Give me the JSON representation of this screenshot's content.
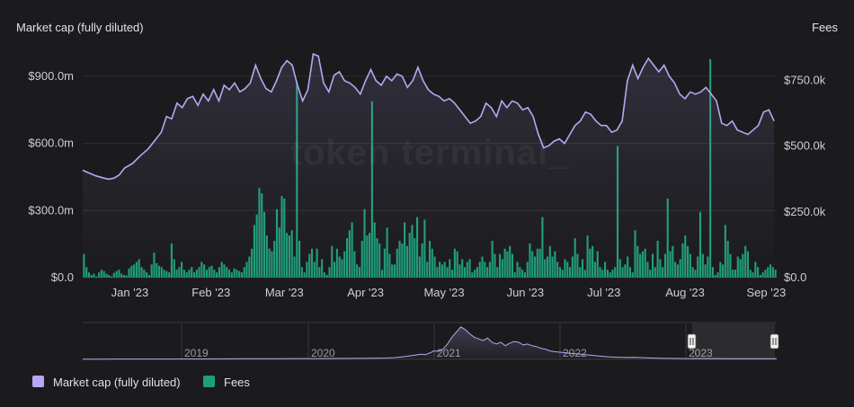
{
  "chart_data": {
    "type": "bar+line",
    "left_axis_title": "Market cap (fully diluted)",
    "right_axis_title": "Fees",
    "watermark": "token terminal_",
    "left_ticks": [
      "$0.0",
      "$300.0m",
      "$600.0m",
      "$900.0m"
    ],
    "left_tick_values": [
      0,
      300,
      600,
      900
    ],
    "right_ticks": [
      "$0.0",
      "$250.0k",
      "$500.0k",
      "$750.0k"
    ],
    "right_tick_values": [
      0,
      250,
      500,
      750
    ],
    "x_ticks": [
      "Jan '23",
      "Feb '23",
      "Mar '23",
      "Apr '23",
      "May '23",
      "Jun '23",
      "Jul '23",
      "Aug '23",
      "Sep '23"
    ],
    "x_range_days": [
      -10,
      255
    ],
    "x_tick_days": [
      8,
      39,
      67,
      98,
      128,
      159,
      189,
      220,
      251
    ],
    "left_range": [
      0,
      1000
    ],
    "right_range": [
      0,
      850
    ],
    "series": [
      {
        "name": "Market cap (fully diluted)",
        "axis": "left",
        "color": "#b8a6f2",
        "unit": "$m",
        "points": [
          [
            -10,
            480
          ],
          [
            -8,
            470
          ],
          [
            -5,
            455
          ],
          [
            -2,
            445
          ],
          [
            0,
            440
          ],
          [
            2,
            445
          ],
          [
            4,
            460
          ],
          [
            6,
            490
          ],
          [
            9,
            510
          ],
          [
            12,
            545
          ],
          [
            15,
            575
          ],
          [
            18,
            620
          ],
          [
            20,
            650
          ],
          [
            22,
            720
          ],
          [
            24,
            710
          ],
          [
            26,
            780
          ],
          [
            28,
            760
          ],
          [
            30,
            800
          ],
          [
            32,
            810
          ],
          [
            34,
            770
          ],
          [
            36,
            820
          ],
          [
            38,
            790
          ],
          [
            40,
            840
          ],
          [
            42,
            790
          ],
          [
            44,
            860
          ],
          [
            46,
            840
          ],
          [
            48,
            870
          ],
          [
            50,
            830
          ],
          [
            52,
            845
          ],
          [
            54,
            870
          ],
          [
            56,
            950
          ],
          [
            58,
            890
          ],
          [
            60,
            845
          ],
          [
            62,
            830
          ],
          [
            64,
            880
          ],
          [
            66,
            940
          ],
          [
            68,
            970
          ],
          [
            70,
            950
          ],
          [
            72,
            860
          ],
          [
            74,
            790
          ],
          [
            76,
            840
          ],
          [
            78,
            1000
          ],
          [
            80,
            990
          ],
          [
            82,
            870
          ],
          [
            84,
            830
          ],
          [
            86,
            905
          ],
          [
            88,
            920
          ],
          [
            90,
            880
          ],
          [
            92,
            870
          ],
          [
            94,
            850
          ],
          [
            96,
            820
          ],
          [
            98,
            880
          ],
          [
            100,
            930
          ],
          [
            102,
            880
          ],
          [
            104,
            860
          ],
          [
            106,
            900
          ],
          [
            108,
            880
          ],
          [
            110,
            910
          ],
          [
            112,
            900
          ],
          [
            114,
            850
          ],
          [
            116,
            880
          ],
          [
            118,
            940
          ],
          [
            120,
            880
          ],
          [
            122,
            840
          ],
          [
            124,
            820
          ],
          [
            126,
            810
          ],
          [
            128,
            790
          ],
          [
            130,
            800
          ],
          [
            132,
            780
          ],
          [
            134,
            750
          ],
          [
            136,
            720
          ],
          [
            138,
            690
          ],
          [
            140,
            700
          ],
          [
            142,
            720
          ],
          [
            144,
            780
          ],
          [
            146,
            760
          ],
          [
            148,
            720
          ],
          [
            150,
            790
          ],
          [
            152,
            760
          ],
          [
            154,
            790
          ],
          [
            156,
            780
          ],
          [
            158,
            750
          ],
          [
            160,
            760
          ],
          [
            162,
            720
          ],
          [
            164,
            640
          ],
          [
            166,
            580
          ],
          [
            168,
            590
          ],
          [
            170,
            610
          ],
          [
            172,
            620
          ],
          [
            174,
            600
          ],
          [
            176,
            640
          ],
          [
            178,
            680
          ],
          [
            180,
            700
          ],
          [
            182,
            740
          ],
          [
            184,
            730
          ],
          [
            186,
            700
          ],
          [
            188,
            680
          ],
          [
            190,
            680
          ],
          [
            192,
            650
          ],
          [
            194,
            660
          ],
          [
            196,
            700
          ],
          [
            198,
            880
          ],
          [
            200,
            950
          ],
          [
            202,
            890
          ],
          [
            204,
            940
          ],
          [
            206,
            980
          ],
          [
            208,
            950
          ],
          [
            210,
            920
          ],
          [
            212,
            950
          ],
          [
            214,
            900
          ],
          [
            216,
            870
          ],
          [
            218,
            820
          ],
          [
            220,
            800
          ],
          [
            222,
            830
          ],
          [
            224,
            820
          ],
          [
            226,
            830
          ],
          [
            228,
            850
          ],
          [
            230,
            820
          ],
          [
            232,
            790
          ],
          [
            234,
            690
          ],
          [
            236,
            680
          ],
          [
            238,
            700
          ],
          [
            240,
            660
          ],
          [
            242,
            650
          ],
          [
            244,
            640
          ],
          [
            246,
            660
          ],
          [
            248,
            680
          ],
          [
            250,
            740
          ],
          [
            252,
            750
          ],
          [
            254,
            700
          ]
        ]
      },
      {
        "name": "Fees",
        "axis": "right",
        "color": "#1f9e7a",
        "unit": "$k",
        "values": [
          90,
          40,
          20,
          10,
          15,
          5,
          20,
          30,
          25,
          15,
          10,
          5,
          18,
          25,
          30,
          15,
          10,
          8,
          35,
          45,
          50,
          60,
          70,
          40,
          30,
          20,
          10,
          50,
          95,
          55,
          45,
          40,
          30,
          25,
          20,
          130,
          70,
          30,
          40,
          60,
          30,
          20,
          30,
          40,
          20,
          30,
          40,
          60,
          50,
          30,
          40,
          45,
          30,
          20,
          40,
          60,
          50,
          40,
          30,
          20,
          35,
          30,
          25,
          20,
          40,
          60,
          80,
          110,
          200,
          240,
          340,
          320,
          250,
          160,
          110,
          100,
          140,
          260,
          190,
          310,
          300,
          170,
          160,
          180,
          80,
          740,
          140,
          40,
          20,
          60,
          90,
          110,
          60,
          110,
          40,
          70,
          20,
          10,
          40,
          120,
          60,
          110,
          80,
          70,
          100,
          150,
          180,
          210,
          100,
          50,
          40,
          140,
          260,
          160,
          170,
          670,
          210,
          150,
          130,
          30,
          110,
          190,
          90,
          50,
          50,
          110,
          140,
          130,
          210,
          120,
          170,
          200,
          150,
          230,
          80,
          130,
          220,
          60,
          140,
          110,
          80,
          40,
          60,
          50,
          60,
          40,
          70,
          30,
          110,
          100,
          50,
          70,
          40,
          60,
          70,
          20,
          30,
          40,
          60,
          80,
          60,
          40,
          60,
          140,
          90,
          40,
          90,
          70,
          110,
          100,
          120,
          90,
          20,
          60,
          40,
          30,
          20,
          60,
          130,
          100,
          80,
          110,
          110,
          230,
          70,
          80,
          120,
          80,
          100,
          60,
          40,
          30,
          70,
          60,
          40,
          80,
          150,
          90,
          40,
          70,
          30,
          160,
          110,
          120,
          60,
          100,
          40,
          30,
          60,
          30,
          20,
          30,
          40,
          500,
          70,
          40,
          50,
          80,
          40,
          20,
          180,
          120,
          90,
          100,
          110,
          60,
          30,
          90,
          40,
          140,
          70,
          40,
          90,
          300,
          100,
          120,
          60,
          50,
          70,
          130,
          160,
          120,
          90,
          40,
          30,
          80,
          250,
          90,
          50,
          80,
          830,
          40,
          10,
          20,
          60,
          50,
          200,
          140,
          90,
          30,
          30,
          80,
          70,
          90,
          120,
          100,
          30,
          20,
          60,
          40,
          10,
          20,
          30,
          40,
          50,
          40,
          30
        ]
      }
    ],
    "navigator": {
      "year_labels": [
        "2019",
        "2020",
        "2021",
        "2022",
        "2023"
      ],
      "points": [
        [
          0,
          3
        ],
        [
          20,
          3
        ],
        [
          40,
          4
        ],
        [
          60,
          4
        ],
        [
          80,
          4
        ],
        [
          100,
          4
        ],
        [
          120,
          5
        ],
        [
          140,
          5
        ],
        [
          160,
          6
        ],
        [
          180,
          7
        ],
        [
          200,
          8
        ],
        [
          220,
          8
        ],
        [
          240,
          9
        ],
        [
          260,
          10
        ],
        [
          280,
          11
        ],
        [
          300,
          12
        ],
        [
          320,
          13
        ],
        [
          340,
          16
        ],
        [
          350,
          20
        ],
        [
          360,
          30
        ],
        [
          370,
          45
        ],
        [
          380,
          60
        ],
        [
          385,
          55
        ],
        [
          390,
          75
        ],
        [
          395,
          100
        ],
        [
          400,
          95
        ],
        [
          405,
          120
        ],
        [
          410,
          180
        ],
        [
          415,
          260
        ],
        [
          420,
          320
        ],
        [
          425,
          380
        ],
        [
          430,
          350
        ],
        [
          435,
          300
        ],
        [
          440,
          260
        ],
        [
          445,
          240
        ],
        [
          450,
          220
        ],
        [
          455,
          250
        ],
        [
          460,
          200
        ],
        [
          465,
          180
        ],
        [
          470,
          200
        ],
        [
          475,
          160
        ],
        [
          480,
          190
        ],
        [
          485,
          210
        ],
        [
          490,
          200
        ],
        [
          495,
          170
        ],
        [
          500,
          180
        ],
        [
          505,
          160
        ],
        [
          510,
          150
        ],
        [
          515,
          130
        ],
        [
          520,
          120
        ],
        [
          525,
          100
        ],
        [
          530,
          90
        ],
        [
          540,
          80
        ],
        [
          550,
          70
        ],
        [
          560,
          60
        ],
        [
          570,
          50
        ],
        [
          580,
          40
        ],
        [
          590,
          30
        ],
        [
          600,
          25
        ],
        [
          610,
          22
        ],
        [
          620,
          24
        ],
        [
          630,
          20
        ],
        [
          640,
          16
        ],
        [
          650,
          14
        ],
        [
          660,
          12
        ],
        [
          670,
          11
        ],
        [
          680,
          10
        ],
        [
          690,
          10
        ],
        [
          700,
          9
        ],
        [
          710,
          9
        ],
        [
          720,
          8
        ],
        [
          730,
          8
        ],
        [
          740,
          7
        ],
        [
          750,
          8
        ],
        [
          760,
          7
        ],
        [
          770,
          8
        ],
        [
          780,
          7
        ]
      ]
    },
    "legend": [
      {
        "name": "Market cap (fully diluted)",
        "color": "#b8a6f2"
      },
      {
        "name": "Fees",
        "color": "#1f9e7a"
      }
    ]
  }
}
